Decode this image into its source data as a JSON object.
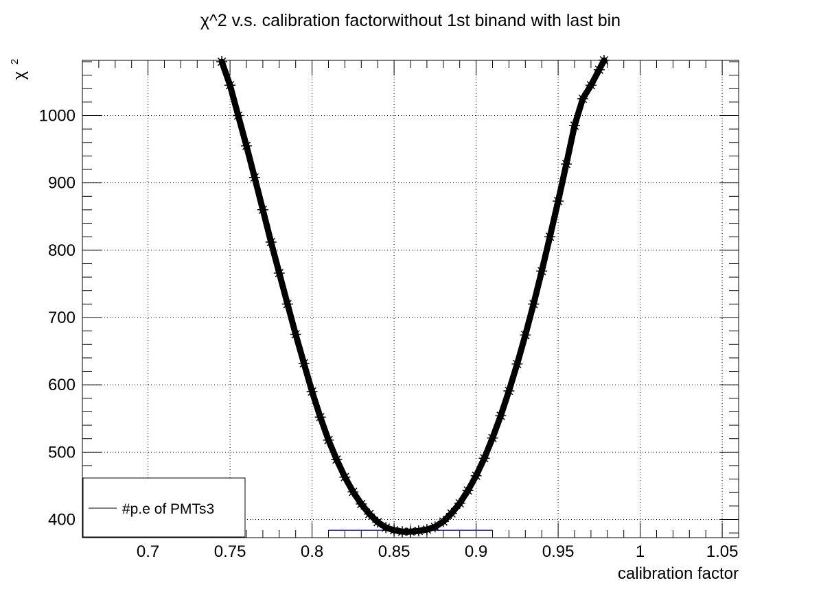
{
  "title": "χ^2 v.s. calibration factorwithout 1st binand with last bin",
  "chart_data": {
    "type": "scatter",
    "title": "χ^2 v.s. calibration factorwithout 1st binand with last bin",
    "xlabel": "calibration factor",
    "ylabel_main": "χ",
    "ylabel_sup": "2",
    "xlim": [
      0.66,
      1.06
    ],
    "ylim": [
      373,
      1082
    ],
    "x_ticks": [
      0.7,
      0.75,
      0.8,
      0.85,
      0.9,
      0.95,
      1.0,
      1.05
    ],
    "x_tick_labels": [
      "0.7",
      "0.75",
      "0.8",
      "0.85",
      "0.9",
      "0.95",
      "1",
      "1.05"
    ],
    "y_ticks": [
      400,
      500,
      600,
      700,
      800,
      900,
      1000
    ],
    "y_tick_labels": [
      "400",
      "500",
      "600",
      "700",
      "800",
      "900",
      "1000"
    ],
    "grid": true,
    "marker": "star",
    "series": [
      {
        "name": "#p.e of PMTs3",
        "color": "#000000",
        "x": [
          0.745,
          0.75,
          0.755,
          0.76,
          0.765,
          0.77,
          0.775,
          0.78,
          0.785,
          0.79,
          0.795,
          0.8,
          0.805,
          0.81,
          0.815,
          0.82,
          0.825,
          0.83,
          0.835,
          0.84,
          0.845,
          0.85,
          0.855,
          0.86,
          0.865,
          0.87,
          0.875,
          0.88,
          0.885,
          0.89,
          0.895,
          0.9,
          0.905,
          0.91,
          0.915,
          0.92,
          0.925,
          0.93,
          0.935,
          0.94,
          0.945,
          0.95,
          0.955,
          0.96,
          0.965,
          0.97,
          0.975,
          0.978
        ],
        "y": [
          1080,
          1045,
          1000,
          955,
          908,
          860,
          812,
          766,
          720,
          675,
          632,
          590,
          552,
          518,
          489,
          463,
          441,
          423,
          408,
          396,
          388,
          384,
          382,
          382,
          383,
          385,
          389,
          397,
          409,
          424,
          443,
          465,
          491,
          521,
          554,
          591,
          631,
          674,
          720,
          769,
          820,
          873,
          928,
          985,
          1025,
          1045,
          1068,
          1082
        ]
      }
    ],
    "fit_line": {
      "x_range": [
        0.81,
        0.91
      ],
      "y": 384,
      "color": "#2a2ad0"
    },
    "min_marker": {
      "x": 0.86,
      "color": "#e03030"
    },
    "legend": {
      "placement": "bottom-left",
      "entries": [
        "#p.e of PMTs3"
      ]
    }
  }
}
